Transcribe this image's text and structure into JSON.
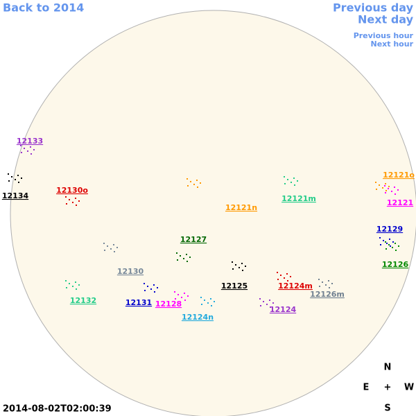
{
  "nav": {
    "back": "Back to 2014",
    "previous_day": "Previous day",
    "next_day": "Next day",
    "previous_hour": "Previous hour",
    "next_hour": "Next hour"
  },
  "regions": [
    {
      "label": "12133",
      "color": "#9933cc"
    },
    {
      "label": "12134",
      "color": "#000000"
    },
    {
      "label": "12130o",
      "color": "#dd0000"
    },
    {
      "label": "12121o",
      "color": "#ff9900"
    },
    {
      "label": "12121",
      "color": "#ff00ff"
    },
    {
      "label": "12121n",
      "color": "#ff9900"
    },
    {
      "label": "12121m",
      "color": "#22cc88"
    },
    {
      "label": "12129",
      "color": "#0000cc"
    },
    {
      "label": "12127",
      "color": "#006600"
    },
    {
      "label": "12126",
      "color": "#008800"
    },
    {
      "label": "12130",
      "color": "#778899"
    },
    {
      "label": "12125",
      "color": "#000000"
    },
    {
      "label": "12124m",
      "color": "#dd0000"
    },
    {
      "label": "12126m",
      "color": "#708090"
    },
    {
      "label": "12132",
      "color": "#22cc88"
    },
    {
      "label": "12131",
      "color": "#0000cc"
    },
    {
      "label": "12128",
      "color": "#ff00ff"
    },
    {
      "label": "12124",
      "color": "#9933cc"
    },
    {
      "label": "12124n",
      "color": "#22aadd"
    }
  ],
  "compass": {
    "north": "N",
    "east": "E",
    "center": "+",
    "west": "W",
    "south": "S"
  },
  "timestamp": "2014-08-02T02:00:39"
}
